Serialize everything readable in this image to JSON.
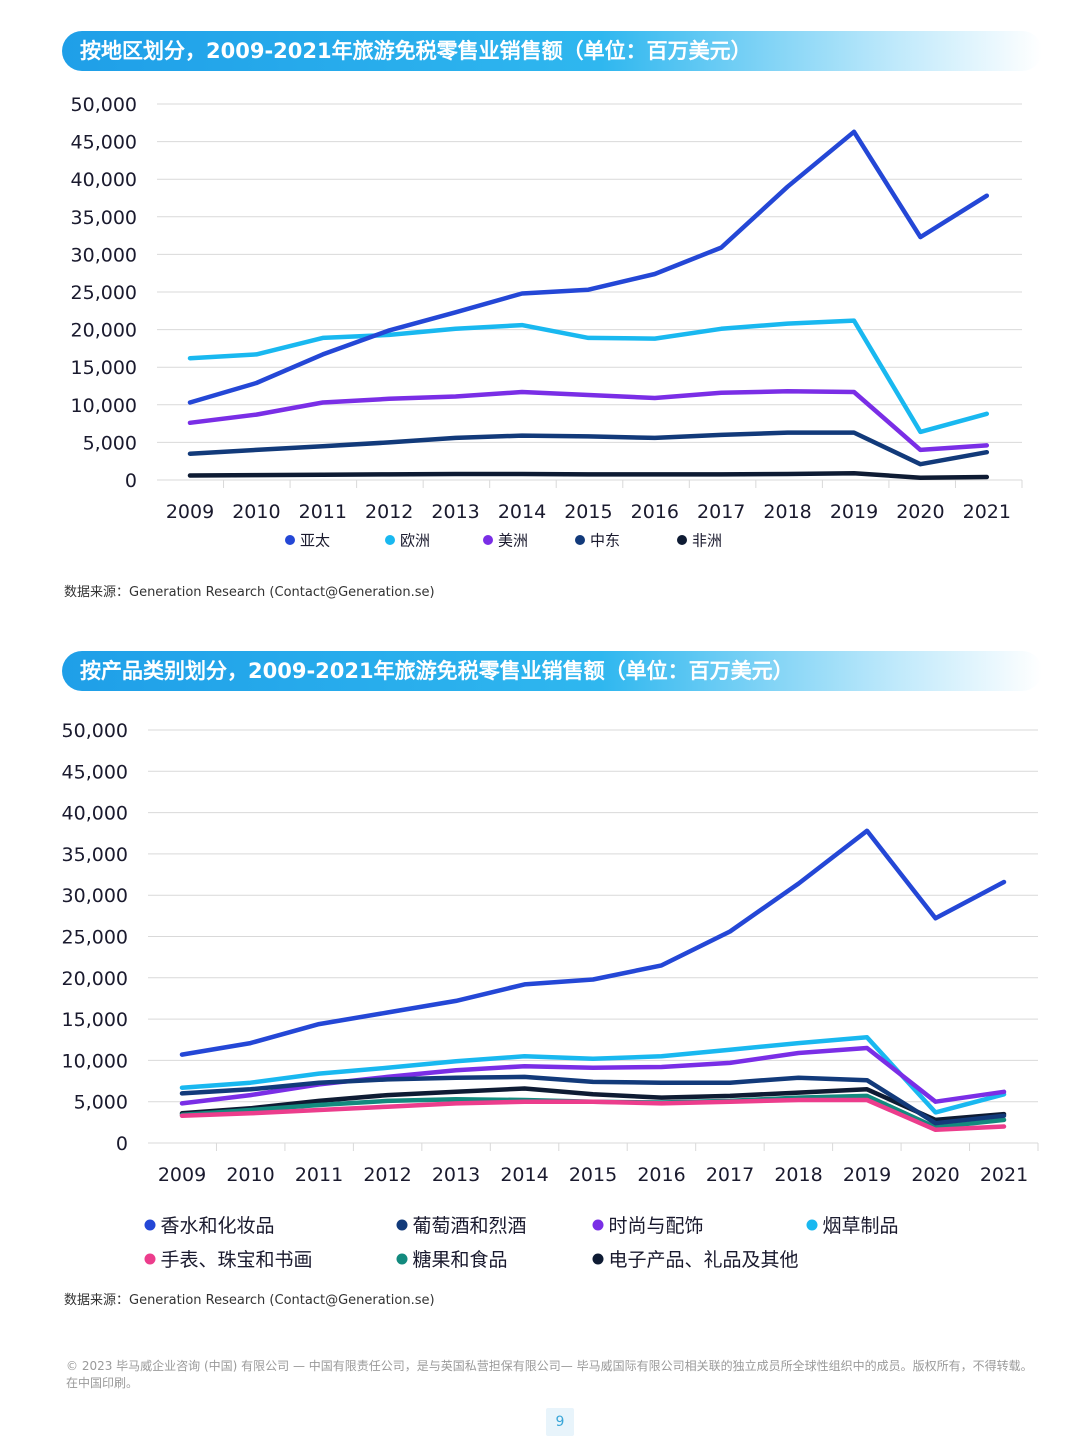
{
  "page": {
    "number": "9"
  },
  "colors": {
    "banner_start": "#1f9fe8",
    "banner_end": "#bfe9fb",
    "grid": "#d9d9d9"
  },
  "footer": "© 2023 毕马威企业咨询 (中国) 有限公司 — 中国有限责任公司，是与英国私营担保有限公司— 毕马威国际有限公司相关联的独立成员所全球性组织中的成员。版权所有，不得转载。在中国印刷。",
  "charts": [
    {
      "banner": "按地区划分，2009-2021年旅游免税零售业销售额（单位：百万美元）",
      "source": "数据来源：Generation Research (Contact@Generation.se)"
    },
    {
      "banner": "按产品类别划分，2009-2021年旅游免税零售业销售额（单位：百万美元）",
      "source": "数据来源：Generation Research (Contact@Generation.se)"
    }
  ],
  "chart_data": [
    {
      "type": "line",
      "title": "按地区划分，2009-2021年旅游免税零售业销售额（单位：百万美元）",
      "x": [
        "2009",
        "2010",
        "2011",
        "2012",
        "2013",
        "2014",
        "2015",
        "2016",
        "2017",
        "2018",
        "2019",
        "2020",
        "2021"
      ],
      "ylim": [
        0,
        50000
      ],
      "yticks": [
        0,
        5000,
        10000,
        15000,
        20000,
        25000,
        30000,
        35000,
        40000,
        45000,
        50000
      ],
      "ytick_labels": [
        "0",
        "5,000",
        "10,000",
        "15,000",
        "20,000",
        "25,000",
        "30,000",
        "35,000",
        "40,000",
        "45,000",
        "50,000"
      ],
      "grid": true,
      "legend_position": "bottom",
      "series": [
        {
          "name": "亚太",
          "color": "#2447d6",
          "values": [
            10300,
            12900,
            16700,
            19900,
            22300,
            24800,
            25300,
            27400,
            30900,
            39000,
            46300,
            32300,
            37800
          ]
        },
        {
          "name": "欧洲",
          "color": "#19b8f0",
          "values": [
            16200,
            16700,
            18900,
            19300,
            20100,
            20600,
            18900,
            18800,
            20100,
            20800,
            21200,
            6400,
            8800
          ]
        },
        {
          "name": "美洲",
          "color": "#7a2ee6",
          "values": [
            7600,
            8700,
            10300,
            10800,
            11100,
            11700,
            11300,
            10900,
            11600,
            11800,
            11700,
            4000,
            4600
          ]
        },
        {
          "name": "中东",
          "color": "#123a7a",
          "values": [
            3500,
            4000,
            4500,
            5000,
            5600,
            5900,
            5800,
            5600,
            6000,
            6300,
            6300,
            2100,
            3700
          ]
        },
        {
          "name": "非洲",
          "color": "#0e1b33",
          "values": [
            600,
            650,
            700,
            750,
            800,
            800,
            750,
            750,
            750,
            800,
            900,
            300,
            400
          ]
        }
      ]
    },
    {
      "type": "line",
      "title": "按产品类别划分，2009-2021年旅游免税零售业销售额（单位：百万美元）",
      "x": [
        "2009",
        "2010",
        "2011",
        "2012",
        "2013",
        "2014",
        "2015",
        "2016",
        "2017",
        "2018",
        "2019",
        "2020",
        "2021"
      ],
      "ylim": [
        0,
        50000
      ],
      "yticks": [
        0,
        5000,
        10000,
        15000,
        20000,
        25000,
        30000,
        35000,
        40000,
        45000,
        50000
      ],
      "ytick_labels": [
        "0",
        "5,000",
        "10,000",
        "15,000",
        "20,000",
        "25,000",
        "30,000",
        "35,000",
        "40,000",
        "45,000",
        "50,000"
      ],
      "grid": true,
      "legend_position": "bottom",
      "series": [
        {
          "name": "香水和化妆品",
          "color": "#2447d6",
          "values": [
            10700,
            12100,
            14400,
            15800,
            17200,
            19200,
            19800,
            21500,
            25600,
            31400,
            37800,
            27200,
            31600
          ]
        },
        {
          "name": "葡萄酒和烈酒",
          "color": "#123a7a",
          "values": [
            6000,
            6500,
            7300,
            7700,
            7900,
            8000,
            7400,
            7300,
            7300,
            7900,
            7600,
            2400,
            3300
          ]
        },
        {
          "name": "时尚与配饰",
          "color": "#7a2ee6",
          "values": [
            4800,
            5800,
            7100,
            8000,
            8800,
            9300,
            9100,
            9200,
            9700,
            10900,
            11500,
            5000,
            6200
          ]
        },
        {
          "name": "烟草制品",
          "color": "#19b8f0",
          "values": [
            6700,
            7300,
            8400,
            9100,
            9900,
            10500,
            10200,
            10500,
            11300,
            12100,
            12800,
            3700,
            5900
          ]
        },
        {
          "name": "手表、珠宝和书画",
          "color": "#ec3d8c",
          "values": [
            3300,
            3600,
            4000,
            4400,
            4800,
            5000,
            5000,
            4800,
            5000,
            5200,
            5200,
            1600,
            2000
          ]
        },
        {
          "name": "糖果和食品",
          "color": "#138a7e",
          "values": [
            3400,
            4000,
            4600,
            5100,
            5300,
            5200,
            5000,
            4900,
            5100,
            5500,
            5700,
            1900,
            2800
          ]
        },
        {
          "name": "电子产品、礼品及其他",
          "color": "#0e1b33",
          "values": [
            3600,
            4200,
            5100,
            5800,
            6200,
            6600,
            5900,
            5500,
            5700,
            6100,
            6500,
            2800,
            3500
          ]
        }
      ]
    }
  ]
}
